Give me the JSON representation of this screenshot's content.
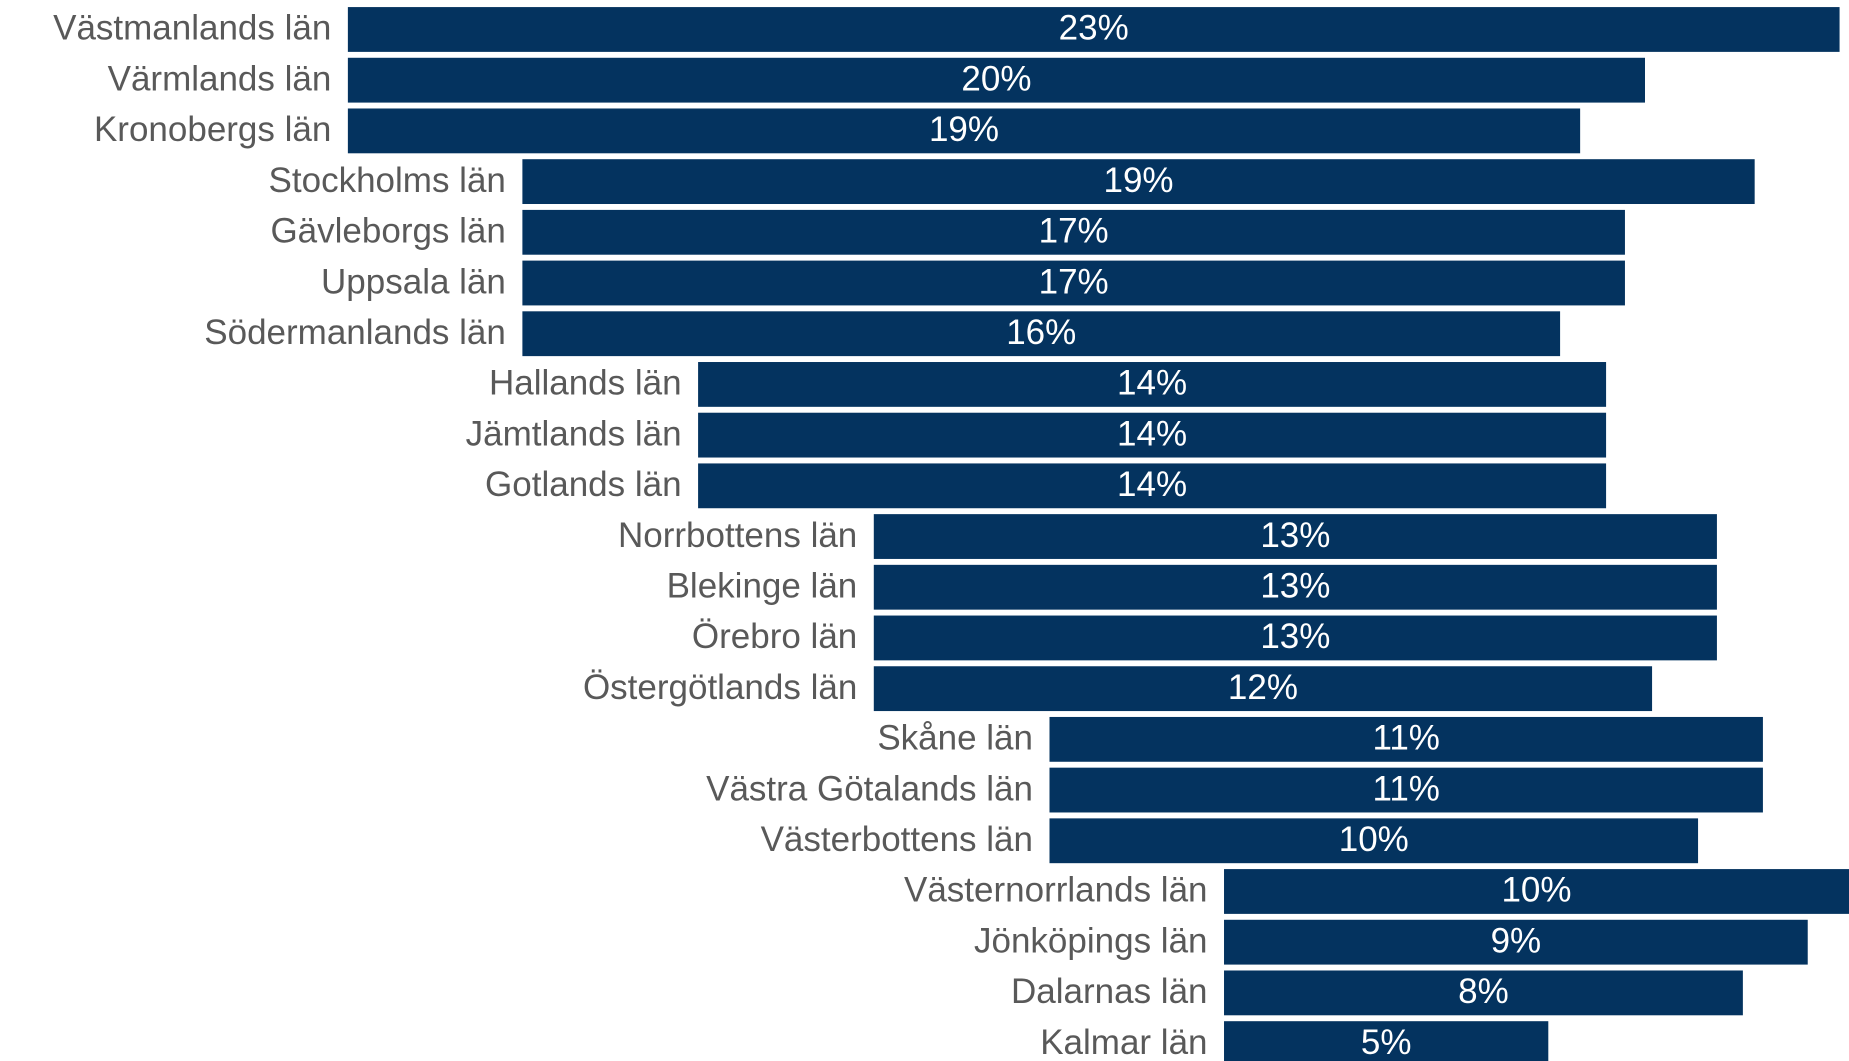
{
  "chart_data": {
    "type": "bar",
    "categories": [
      "Västmanlands län",
      "Värmlands län",
      "Kronobergs län",
      "Stockholms län",
      "Gävleborgs län",
      "Uppsala län",
      "Södermanlands län",
      "Hallands län",
      "Jämtlands län",
      "Gotlands län",
      "Norrbottens län",
      "Blekinge län",
      "Örebro län",
      "Östergötlands län",
      "Skåne län",
      "Västra Götalands län",
      "Västerbottens län",
      "Västernorrlands län",
      "Jönköpings län",
      "Dalarnas län",
      "Kalmar län"
    ],
    "values": [
      23,
      20,
      19,
      19,
      17,
      17,
      16,
      14,
      14,
      14,
      13,
      13,
      13,
      12,
      11,
      11,
      10,
      10,
      9,
      8,
      5
    ],
    "value_labels": [
      "23%",
      "20%",
      "19%",
      "19%",
      "17%",
      "17%",
      "16%",
      "14%",
      "14%",
      "14%",
      "13%",
      "13%",
      "13%",
      "12%",
      "11%",
      "11%",
      "10%",
      "10%",
      "9%",
      "8%",
      "5%"
    ],
    "color": "#04335f"
  }
}
